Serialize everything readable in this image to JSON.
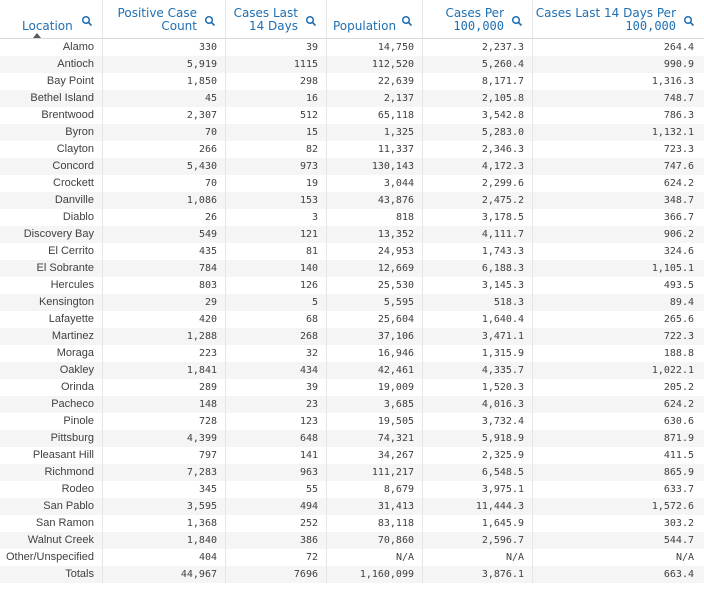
{
  "columns": [
    {
      "label": "Location",
      "search": "search-icon"
    },
    {
      "label_line1": "Positive Case",
      "label_line2": "Count",
      "search": "search-icon"
    },
    {
      "label_line1": "Cases Last",
      "label_line2": "14 Days",
      "search": "search-icon"
    },
    {
      "label": "Population",
      "search": "search-icon"
    },
    {
      "label_line1": "Cases Per",
      "label_line2": "100,000",
      "search": "search-icon"
    },
    {
      "label_line1": "Cases Last 14 Days Per",
      "label_line2": "100,000",
      "search": "search-icon"
    }
  ],
  "sort_indicator": "sort-ascending-icon",
  "rows": [
    [
      "Alamo",
      "330",
      "39",
      "14,750",
      "2,237.3",
      "264.4"
    ],
    [
      "Antioch",
      "5,919",
      "1115",
      "112,520",
      "5,260.4",
      "990.9"
    ],
    [
      "Bay Point",
      "1,850",
      "298",
      "22,639",
      "8,171.7",
      "1,316.3"
    ],
    [
      "Bethel Island",
      "45",
      "16",
      "2,137",
      "2,105.8",
      "748.7"
    ],
    [
      "Brentwood",
      "2,307",
      "512",
      "65,118",
      "3,542.8",
      "786.3"
    ],
    [
      "Byron",
      "70",
      "15",
      "1,325",
      "5,283.0",
      "1,132.1"
    ],
    [
      "Clayton",
      "266",
      "82",
      "11,337",
      "2,346.3",
      "723.3"
    ],
    [
      "Concord",
      "5,430",
      "973",
      "130,143",
      "4,172.3",
      "747.6"
    ],
    [
      "Crockett",
      "70",
      "19",
      "3,044",
      "2,299.6",
      "624.2"
    ],
    [
      "Danville",
      "1,086",
      "153",
      "43,876",
      "2,475.2",
      "348.7"
    ],
    [
      "Diablo",
      "26",
      "3",
      "818",
      "3,178.5",
      "366.7"
    ],
    [
      "Discovery Bay",
      "549",
      "121",
      "13,352",
      "4,111.7",
      "906.2"
    ],
    [
      "El Cerrito",
      "435",
      "81",
      "24,953",
      "1,743.3",
      "324.6"
    ],
    [
      "El Sobrante",
      "784",
      "140",
      "12,669",
      "6,188.3",
      "1,105.1"
    ],
    [
      "Hercules",
      "803",
      "126",
      "25,530",
      "3,145.3",
      "493.5"
    ],
    [
      "Kensington",
      "29",
      "5",
      "5,595",
      "518.3",
      "89.4"
    ],
    [
      "Lafayette",
      "420",
      "68",
      "25,604",
      "1,640.4",
      "265.6"
    ],
    [
      "Martinez",
      "1,288",
      "268",
      "37,106",
      "3,471.1",
      "722.3"
    ],
    [
      "Moraga",
      "223",
      "32",
      "16,946",
      "1,315.9",
      "188.8"
    ],
    [
      "Oakley",
      "1,841",
      "434",
      "42,461",
      "4,335.7",
      "1,022.1"
    ],
    [
      "Orinda",
      "289",
      "39",
      "19,009",
      "1,520.3",
      "205.2"
    ],
    [
      "Pacheco",
      "148",
      "23",
      "3,685",
      "4,016.3",
      "624.2"
    ],
    [
      "Pinole",
      "728",
      "123",
      "19,505",
      "3,732.4",
      "630.6"
    ],
    [
      "Pittsburg",
      "4,399",
      "648",
      "74,321",
      "5,918.9",
      "871.9"
    ],
    [
      "Pleasant Hill",
      "797",
      "141",
      "34,267",
      "2,325.9",
      "411.5"
    ],
    [
      "Richmond",
      "7,283",
      "963",
      "111,217",
      "6,548.5",
      "865.9"
    ],
    [
      "Rodeo",
      "345",
      "55",
      "8,679",
      "3,975.1",
      "633.7"
    ],
    [
      "San Pablo",
      "3,595",
      "494",
      "31,413",
      "11,444.3",
      "1,572.6"
    ],
    [
      "San Ramon",
      "1,368",
      "252",
      "83,118",
      "1,645.9",
      "303.2"
    ],
    [
      "Walnut Creek",
      "1,840",
      "386",
      "70,860",
      "2,596.7",
      "544.7"
    ],
    [
      "Other/Unspecified",
      "404",
      "72",
      "N/A",
      "N/A",
      "N/A"
    ],
    [
      "Totals",
      "44,967",
      "7696",
      "1,160,099",
      "3,876.1",
      "663.4"
    ]
  ],
  "colors": {
    "header_text": "#1f6fb2",
    "alt_row": "#f5f5f5",
    "grid": "#e6e6e6",
    "text": "#404040"
  }
}
